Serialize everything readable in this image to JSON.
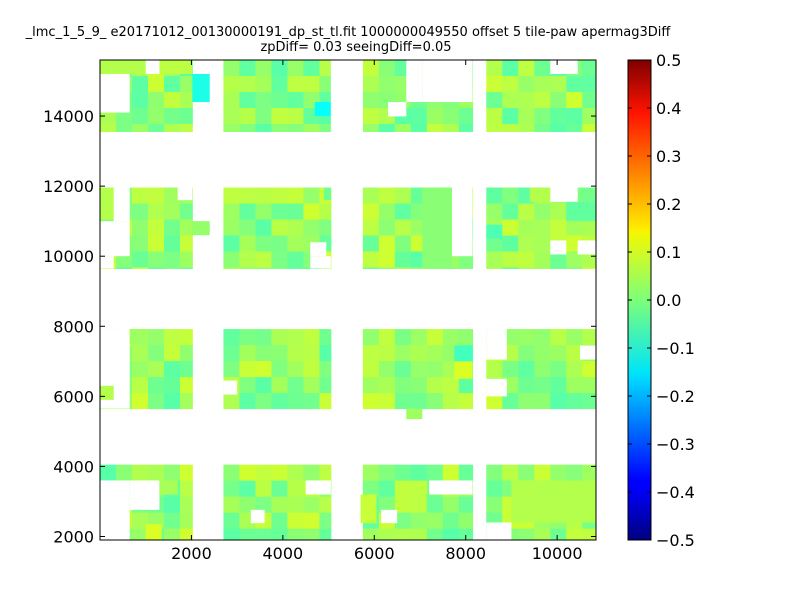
{
  "chart_data": {
    "type": "heatmap",
    "title_line1": "_lmc_1_5_9_ e20171012_00130000191_dp_st_tl.fit 1000000049550 offset 5 tile-paw apermag3Diff",
    "title_line2": "zpDiff= 0.03 seeingDiff=0.05",
    "xlim": [
      0,
      10850
    ],
    "ylim": [
      1900,
      15600
    ],
    "x_ticks": [
      "2000",
      "4000",
      "6000",
      "8000",
      "10000"
    ],
    "x_tick_values": [
      2000,
      4000,
      6000,
      8000,
      10000
    ],
    "y_ticks": [
      "2000",
      "4000",
      "6000",
      "8000",
      "10000",
      "12000",
      "14000"
    ],
    "y_tick_values": [
      2000,
      4000,
      6000,
      8000,
      10000,
      12000,
      14000
    ],
    "colorbar": {
      "colormap": "jet",
      "range": [
        -0.5,
        0.5
      ],
      "ticks": [
        "0.5",
        "0.4",
        "0.3",
        "0.2",
        "0.1",
        "0.0",
        "−0.1",
        "−0.2",
        "−0.3",
        "−0.4",
        "−0.5"
      ],
      "tick_values": [
        0.5,
        0.4,
        0.3,
        0.2,
        0.1,
        0.0,
        -0.1,
        -0.2,
        -0.3,
        -0.4,
        -0.5
      ]
    },
    "bands_y": [
      [
        1900,
        4050
      ],
      [
        5650,
        7920
      ],
      [
        9650,
        11960
      ],
      [
        13560,
        15600
      ]
    ],
    "bands_x": [
      [
        0,
        2020
      ],
      [
        2700,
        5050
      ],
      [
        5750,
        8150
      ],
      [
        8450,
        10850
      ]
    ],
    "typical_value": 0.02,
    "cells": [
      {
        "x": [
          3300,
          3600
        ],
        "y": [
          2380,
          2760
        ],
        "v": null
      },
      {
        "x": [
          1000,
          1350
        ],
        "y": [
          1900,
          2350
        ],
        "v": 0.09
      },
      {
        "x": [
          5700,
          6050
        ],
        "y": [
          2380,
          3200
        ],
        "v": 0.07
      },
      {
        "x": [
          6150,
          6500
        ],
        "y": [
          2380,
          2760
        ],
        "v": null
      },
      {
        "x": [
          0,
          650
        ],
        "y": [
          1900,
          3600
        ],
        "v": null
      },
      {
        "x": [
          650,
          1300
        ],
        "y": [
          2760,
          3600
        ],
        "v": null
      },
      {
        "x": [
          1300,
          1700
        ],
        "y": [
          3200,
          3600
        ],
        "v": 0.04
      },
      {
        "x": [
          8450,
          9000
        ],
        "y": [
          1900,
          2400
        ],
        "v": null
      },
      {
        "x": [
          9000,
          10850
        ],
        "y": [
          2400,
          3600
        ],
        "v": 0.05
      },
      {
        "x": [
          7200,
          8150
        ],
        "y": [
          3200,
          3600
        ],
        "v": null
      },
      {
        "x": [
          4500,
          5050
        ],
        "y": [
          3200,
          3600
        ],
        "v": null
      },
      {
        "x": [
          6700,
          7050
        ],
        "y": [
          5350,
          5650
        ],
        "v": 0.03
      },
      {
        "x": [
          0,
          650
        ],
        "y": [
          5650,
          7920
        ],
        "v": null
      },
      {
        "x": [
          0,
          300
        ],
        "y": [
          5900,
          6300
        ],
        "v": 0.05
      },
      {
        "x": [
          650,
          1000
        ],
        "y": [
          7500,
          7920
        ],
        "v": 0.03
      },
      {
        "x": [
          2700,
          3000
        ],
        "y": [
          6050,
          6450
        ],
        "v": null
      },
      {
        "x": [
          7750,
          8150
        ],
        "y": [
          6500,
          7000
        ],
        "v": 0.09
      },
      {
        "x": [
          7750,
          8150
        ],
        "y": [
          7000,
          7450
        ],
        "v": -0.06
      },
      {
        "x": [
          8450,
          8900
        ],
        "y": [
          6000,
          6500
        ],
        "v": null
      },
      {
        "x": [
          8450,
          8900
        ],
        "y": [
          7050,
          7450
        ],
        "v": null
      },
      {
        "x": [
          10500,
          10850
        ],
        "y": [
          7050,
          7450
        ],
        "v": null
      },
      {
        "x": [
          8450,
          8900
        ],
        "y": [
          7450,
          7920
        ],
        "v": null
      },
      {
        "x": [
          0,
          300
        ],
        "y": [
          9650,
          10000
        ],
        "v": null
      },
      {
        "x": [
          0,
          650
        ],
        "y": [
          10000,
          11000
        ],
        "v": null
      },
      {
        "x": [
          0,
          300
        ],
        "y": [
          11500,
          11960
        ],
        "v": 0.05
      },
      {
        "x": [
          300,
          650
        ],
        "y": [
          11000,
          11960
        ],
        "v": null
      },
      {
        "x": [
          1700,
          2020
        ],
        "y": [
          11600,
          11960
        ],
        "v": null
      },
      {
        "x": [
          2020,
          2400
        ],
        "y": [
          10600,
          11000
        ],
        "v": 0.02
      },
      {
        "x": [
          4600,
          4950
        ],
        "y": [
          10000,
          10400
        ],
        "v": null
      },
      {
        "x": [
          4600,
          5050
        ],
        "y": [
          9650,
          10000
        ],
        "v": null
      },
      {
        "x": [
          4900,
          5050
        ],
        "y": [
          11600,
          11960
        ],
        "v": -0.02
      },
      {
        "x": [
          7050,
          7700
        ],
        "y": [
          9650,
          11960
        ],
        "v": 0.01
      },
      {
        "x": [
          7700,
          8150
        ],
        "y": [
          10000,
          11960
        ],
        "v": null
      },
      {
        "x": [
          8450,
          8800
        ],
        "y": [
          10500,
          10900
        ],
        "v": -0.05
      },
      {
        "x": [
          9400,
          9850
        ],
        "y": [
          11550,
          11960
        ],
        "v": 0.05
      },
      {
        "x": [
          9850,
          10450
        ],
        "y": [
          11550,
          11960
        ],
        "v": null
      },
      {
        "x": [
          9850,
          10200
        ],
        "y": [
          10050,
          10450
        ],
        "v": null
      },
      {
        "x": [
          10450,
          10850
        ],
        "y": [
          10050,
          10450
        ],
        "v": null
      },
      {
        "x": [
          10200,
          10850
        ],
        "y": [
          11000,
          11550
        ],
        "v": -0.03
      },
      {
        "x": [
          0,
          650
        ],
        "y": [
          14100,
          15200
        ],
        "v": null
      },
      {
        "x": [
          2020,
          2400
        ],
        "y": [
          14400,
          15200
        ],
        "v": -0.1
      },
      {
        "x": [
          1300,
          2020
        ],
        "y": [
          15200,
          15600
        ],
        "v": 0.06
      },
      {
        "x": [
          0,
          1000
        ],
        "y": [
          15200,
          15600
        ],
        "v": 0.05
      },
      {
        "x": [
          1000,
          1300
        ],
        "y": [
          15200,
          15600
        ],
        "v": null
      },
      {
        "x": [
          4700,
          5050
        ],
        "y": [
          14000,
          14400
        ],
        "v": -0.12
      },
      {
        "x": [
          6300,
          6700
        ],
        "y": [
          13990,
          14400
        ],
        "v": null
      },
      {
        "x": [
          7050,
          8150
        ],
        "y": [
          14400,
          15600
        ],
        "v": null
      },
      {
        "x": [
          6700,
          7050
        ],
        "y": [
          14400,
          15600
        ],
        "v": null
      },
      {
        "x": [
          9850,
          10450
        ],
        "y": [
          15200,
          15600
        ],
        "v": null
      },
      {
        "x": [
          5050,
          5750
        ],
        "y": [
          13560,
          15600
        ],
        "v": null
      }
    ]
  }
}
